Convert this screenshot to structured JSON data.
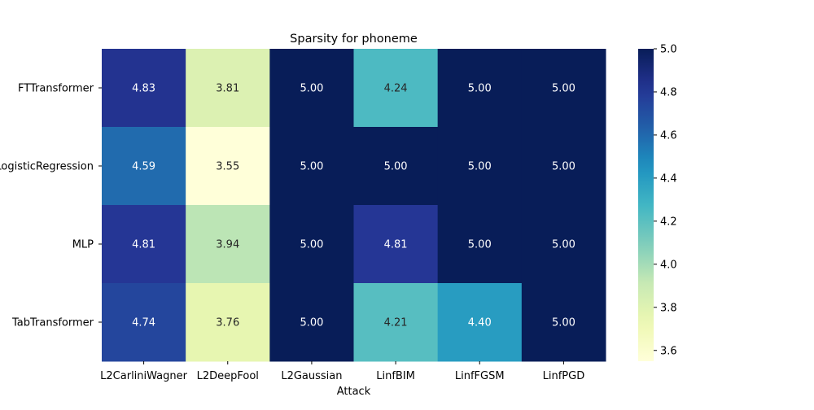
{
  "chart_data": {
    "type": "heatmap",
    "title": "Sparsity for phoneme",
    "xlabel": "Attack",
    "ylabel": "",
    "columns": [
      "L2CarliniWagner",
      "L2DeepFool",
      "L2Gaussian",
      "LinfBIM",
      "LinfFGSM",
      "LinfPGD"
    ],
    "rows": [
      "FTTransformer",
      "LogisticRegression",
      "MLP",
      "TabTransformer"
    ],
    "values": [
      [
        4.83,
        3.81,
        5.0,
        4.24,
        5.0,
        5.0
      ],
      [
        4.59,
        3.55,
        5.0,
        5.0,
        5.0,
        5.0
      ],
      [
        4.81,
        3.94,
        5.0,
        4.81,
        5.0,
        5.0
      ],
      [
        4.74,
        3.76,
        5.0,
        4.21,
        4.4,
        5.0
      ]
    ],
    "cell_labels": [
      [
        "4.83",
        "3.81",
        "5.00",
        "4.24",
        "5.00",
        "5.00"
      ],
      [
        "4.59",
        "3.55",
        "5.00",
        "5.00",
        "5.00",
        "5.00"
      ],
      [
        "4.81",
        "3.94",
        "5.00",
        "4.81",
        "5.00",
        "5.00"
      ],
      [
        "4.74",
        "3.76",
        "5.00",
        "4.21",
        "4.40",
        "5.00"
      ]
    ],
    "colormap": "YlGnBu",
    "color_range": [
      3.55,
      5.0
    ],
    "colorbar_ticks": [
      3.6,
      3.8,
      4.0,
      4.2,
      4.4,
      4.6,
      4.8,
      5.0
    ],
    "colorbar_tick_labels": [
      "3.6",
      "3.8",
      "4.0",
      "4.2",
      "4.4",
      "4.6",
      "4.8",
      "5.0"
    ],
    "colorbar_position": "right",
    "grid": false
  }
}
